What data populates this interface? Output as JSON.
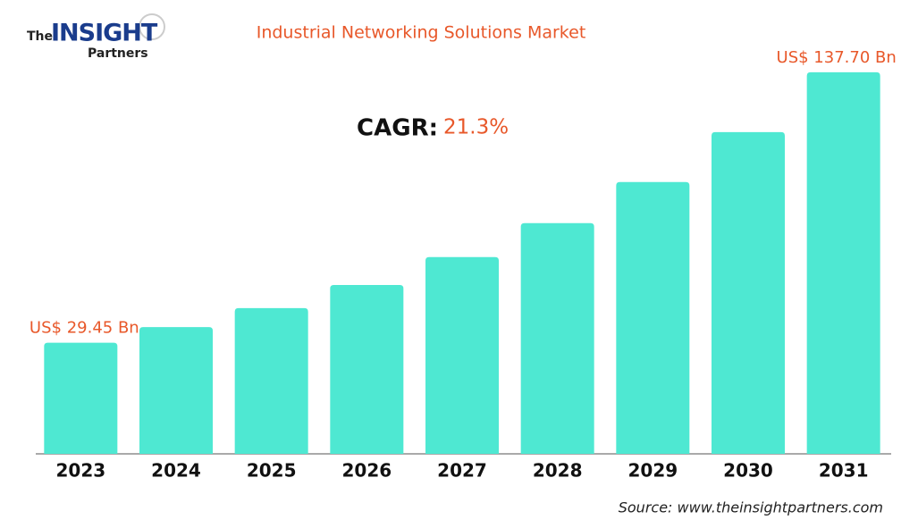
{
  "logo": {
    "the": "The",
    "insight": "INSIGHT",
    "partners": "Partners"
  },
  "chart_data": {
    "type": "bar",
    "title": "Industrial Networking Solutions Market",
    "cagr_label": "CAGR:",
    "cagr_value": "21.3%",
    "categories": [
      "2023",
      "2024",
      "2025",
      "2026",
      "2027",
      "2028",
      "2029",
      "2030",
      "2031"
    ],
    "values": [
      29.45,
      35.72,
      43.33,
      52.56,
      63.75,
      77.33,
      93.8,
      113.78,
      137.7
    ],
    "value_labels": [
      "US$ 29.45 Bn",
      null,
      null,
      null,
      null,
      null,
      null,
      null,
      "US$ 137.70 Bn"
    ],
    "color": "#4ee8d2",
    "ylim": [
      -15,
      140
    ],
    "source": "Source: www.theinsightpartners.com"
  }
}
